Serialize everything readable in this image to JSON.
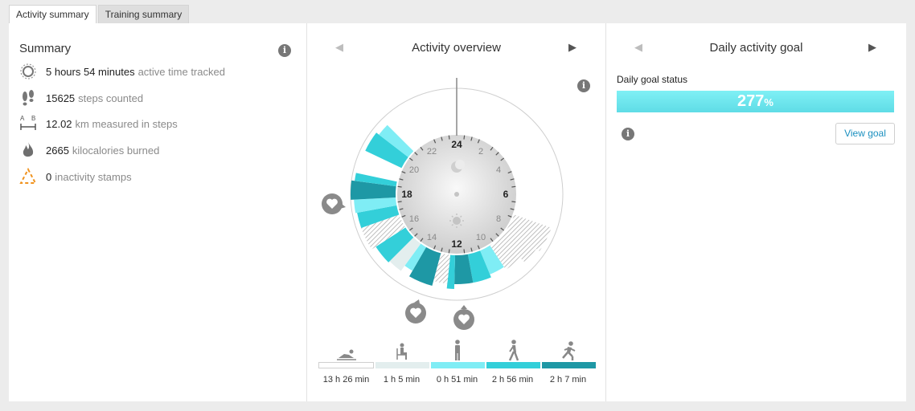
{
  "tabs": [
    {
      "label": "Activity summary",
      "active": true
    },
    {
      "label": "Training summary",
      "active": false
    }
  ],
  "summary": {
    "title": "Summary",
    "stats": [
      {
        "icon": "activity-time-icon",
        "value": "5 hours 54 minutes",
        "label": "active time tracked"
      },
      {
        "icon": "footsteps-icon",
        "value": "15625",
        "label": "steps counted"
      },
      {
        "icon": "distance-icon",
        "value": "12.02",
        "label": "km measured in steps"
      },
      {
        "icon": "flame-icon",
        "value": "2665",
        "label": "kilocalories burned"
      },
      {
        "icon": "inactivity-stamp-icon",
        "value": "0",
        "label": "inactivity stamps"
      }
    ]
  },
  "overview": {
    "title": "Activity overview",
    "hour_labels": {
      "h24": "24",
      "h2": "2",
      "h4": "4",
      "h6": "6",
      "h8": "8",
      "h10": "10",
      "h12": "12",
      "h14": "14",
      "h16": "16",
      "h18": "18",
      "h20": "20",
      "h22": "22"
    },
    "legend": [
      {
        "icon": "resting-icon",
        "label": "13 h 26 min",
        "color": "#ffffff"
      },
      {
        "icon": "sitting-icon",
        "label": "1 h 5 min",
        "color": "#e3eeee"
      },
      {
        "icon": "standing-icon",
        "label": "0 h 51 min",
        "color": "#7fedf5"
      },
      {
        "icon": "walking-icon",
        "label": "2 h 56 min",
        "color": "#33cfd9"
      },
      {
        "icon": "running-icon",
        "label": "2 h 7 min",
        "color": "#1e98a5"
      }
    ]
  },
  "goal": {
    "title": "Daily activity goal",
    "status_label": "Daily goal status",
    "percent": "277",
    "percent_sign": "%",
    "percent_value": 277,
    "view_goal_label": "View goal"
  },
  "colors": {
    "accent": "#1a8fbf",
    "goal_bar": "#5fdce6",
    "walking": "#33cfd9",
    "running": "#1e98a5"
  }
}
